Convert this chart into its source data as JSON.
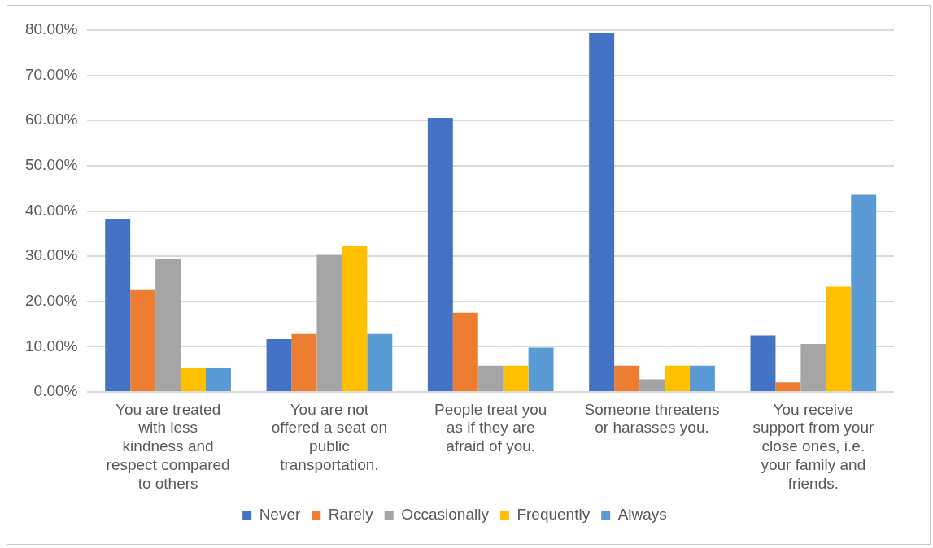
{
  "chart_data": {
    "type": "bar",
    "categories": [
      "You are treated with less kindness and respect compared to others",
      "You are not offered a seat on public transportation.",
      "People treat you as if they are afraid of you.",
      "Someone threatens or harasses you.",
      "You receive support from your close ones, i.e. your family and friends."
    ],
    "series": [
      {
        "name": "Never",
        "color": "#4472c4",
        "values": [
          38.3,
          11.7,
          60.6,
          79.3,
          12.5
        ]
      },
      {
        "name": "Rarely",
        "color": "#ed7d31",
        "values": [
          22.5,
          12.8,
          17.5,
          5.8,
          2.1
        ]
      },
      {
        "name": "Occasionally",
        "color": "#a5a5a5",
        "values": [
          29.3,
          30.3,
          5.8,
          2.8,
          10.6
        ]
      },
      {
        "name": "Frequently",
        "color": "#ffc000",
        "values": [
          5.4,
          32.3,
          5.8,
          5.8,
          23.3
        ]
      },
      {
        "name": "Always",
        "color": "#5b9bd5",
        "values": [
          5.4,
          12.8,
          9.8,
          5.8,
          43.6
        ]
      }
    ],
    "ylim": [
      0,
      80
    ],
    "yticks": [
      {
        "value": 0,
        "label": "0.00%"
      },
      {
        "value": 10,
        "label": "10.00%"
      },
      {
        "value": 20,
        "label": "20.00%"
      },
      {
        "value": 30,
        "label": "30.00%"
      },
      {
        "value": 40,
        "label": "40.00%"
      },
      {
        "value": 50,
        "label": "50.00%"
      },
      {
        "value": 60,
        "label": "60.00%"
      },
      {
        "value": 70,
        "label": "70.00%"
      },
      {
        "value": 80,
        "label": "80.00%"
      }
    ],
    "grid": "y",
    "legend": "bottom"
  }
}
